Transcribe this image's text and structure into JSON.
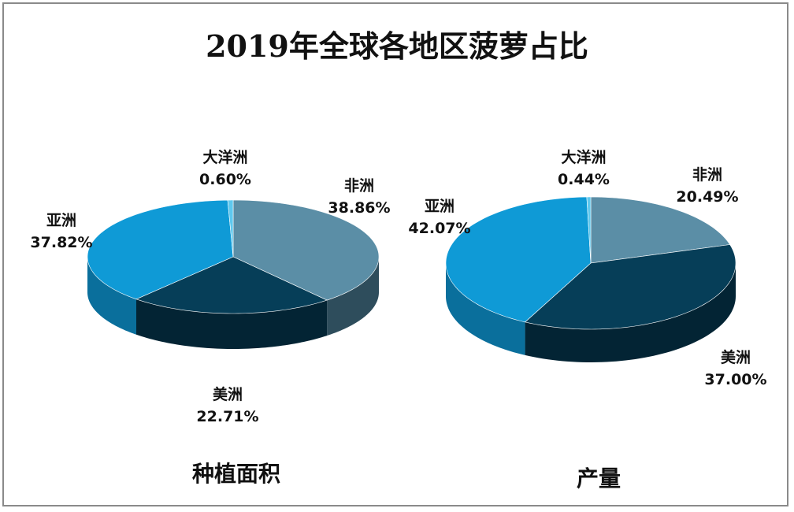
{
  "chart_data": [
    {
      "type": "pie",
      "subtitle": "种植面积",
      "slices": [
        {
          "label": "非洲",
          "value": 38.86,
          "display": "38.86%",
          "color": "#5b8ea6",
          "side": "#2e4d5c"
        },
        {
          "label": "美洲",
          "value": 22.71,
          "display": "22.71%",
          "color": "#063e58",
          "side": "#032434"
        },
        {
          "label": "亚洲",
          "value": 37.82,
          "display": "37.82%",
          "color": "#0f9ad6",
          "side": "#0a6f9c"
        },
        {
          "label": "大洋洲",
          "value": 0.6,
          "display": "0.60%",
          "color": "#5ec8ee",
          "side": "#3a9cc2"
        }
      ]
    },
    {
      "type": "pie",
      "subtitle": "产量",
      "slices": [
        {
          "label": "非洲",
          "value": 20.49,
          "display": "20.49%",
          "color": "#5b8ea6",
          "side": "#2e4d5c"
        },
        {
          "label": "美洲",
          "value": 37.0,
          "display": "37.00%",
          "color": "#063e58",
          "side": "#032434"
        },
        {
          "label": "亚洲",
          "value": 42.07,
          "display": "42.07%",
          "color": "#0f9ad6",
          "side": "#0a6f9c"
        },
        {
          "label": "大洋洲",
          "value": 0.44,
          "display": "0.44%",
          "color": "#5ec8ee",
          "side": "#3a9cc2"
        }
      ]
    }
  ],
  "title": "2019年全球各地区菠萝占比"
}
